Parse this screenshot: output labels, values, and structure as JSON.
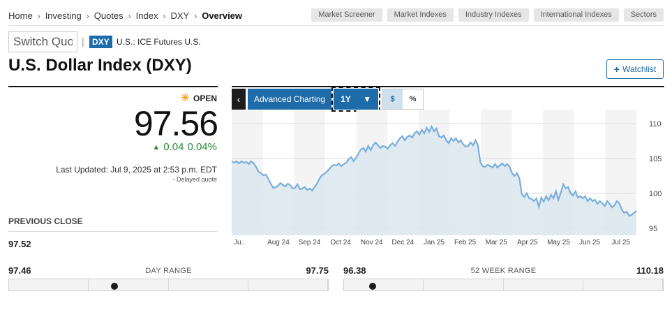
{
  "breadcrumb": [
    "Home",
    "Investing",
    "Quotes",
    "Index",
    "DXY",
    "Overview"
  ],
  "topnav": [
    "Market Screener",
    "Market Indexes",
    "Industry Indexes",
    "International Indexes",
    "Sectors"
  ],
  "quote_search": {
    "value": "Switch Quo"
  },
  "ticker": "DXY",
  "exchange": "U.S.: ICE Futures U.S.",
  "title": "U.S. Dollar Index (DXY)",
  "watchlist_label": "Watchlist",
  "market_status": "OPEN",
  "price": "97.56",
  "change": "0.04",
  "change_pct": "0.04%",
  "last_updated": "Last Updated: Jul 9, 2025 at 2:53 p.m. EDT",
  "delayed": "- Delayed quote",
  "previous_close": {
    "label": "PREVIOUS CLOSE",
    "value": "97.52"
  },
  "toolbar": {
    "back_icon": "‹",
    "advanced": "Advanced Charting",
    "range": "1Y",
    "dollar": "$",
    "percent": "%"
  },
  "day_range": {
    "label": "DAY RANGE",
    "low": "97.46",
    "high": "97.75",
    "position": 0.33
  },
  "week52_range": {
    "label": "52 WEEK RANGE",
    "low": "96.38",
    "high": "110.18",
    "position": 0.09
  },
  "colors": {
    "accent": "#1d6ba8",
    "up": "#2e8b3a",
    "line": "#7aaedc",
    "fill": "#dbe6ef"
  },
  "chart_data": {
    "type": "area",
    "x_ticks": [
      "Ju..",
      "Aug 24",
      "Sep 24",
      "Oct 24",
      "Nov 24",
      "Dec 24",
      "Jan 25",
      "Feb 25",
      "Mar 25",
      "Apr 25",
      "May 25",
      "Jun 25",
      "Jul 25"
    ],
    "y_ticks": [
      "110",
      "105",
      "100",
      "95"
    ],
    "ylim": [
      94,
      112
    ],
    "series": [
      {
        "values": [
          104.6,
          104.4,
          104.6,
          104.3,
          104.6,
          104.4,
          104.5,
          104.2,
          104.6,
          104.3,
          103.8,
          103.1,
          102.9,
          102.6,
          102.7,
          102.1,
          101.4,
          100.8,
          100.9,
          101.1,
          101.5,
          101.2,
          101.0,
          101.4,
          101.2,
          100.7,
          100.8,
          101.3,
          100.6,
          100.7,
          100.9,
          100.5,
          100.7,
          100.4,
          100.9,
          101.4,
          102.1,
          102.6,
          102.8,
          103.1,
          103.5,
          103.9,
          104.1,
          104.0,
          104.3,
          103.9,
          104.2,
          104.4,
          104.9,
          105.2,
          104.6,
          105.1,
          105.7,
          106.3,
          106.5,
          106.0,
          106.8,
          106.2,
          106.9,
          107.3,
          106.9,
          106.5,
          106.8,
          106.7,
          106.4,
          106.9,
          107.2,
          106.8,
          107.4,
          107.9,
          108.2,
          107.6,
          108.1,
          108.3,
          108.0,
          108.6,
          108.9,
          108.4,
          109.1,
          108.6,
          109.4,
          108.8,
          109.6,
          108.9,
          109.3,
          108.2,
          108.0,
          108.3,
          107.6,
          107.2,
          107.9,
          107.5,
          107.9,
          107.3,
          107.6,
          107.0,
          106.7,
          106.8,
          107.3,
          106.9,
          107.6,
          106.9,
          104.4,
          103.9,
          103.8,
          104.1,
          103.9,
          103.7,
          104.2,
          103.7,
          104.0,
          104.3,
          103.9,
          104.2,
          103.8,
          102.9,
          102.5,
          102.9,
          102.2,
          99.9,
          99.5,
          100.0,
          99.3,
          99.2,
          98.9,
          99.3,
          98.1,
          99.4,
          98.8,
          99.6,
          99.0,
          99.8,
          99.3,
          100.3,
          99.1,
          100.1,
          101.3,
          100.7,
          100.9,
          100.0,
          99.7,
          100.3,
          99.4,
          99.6,
          99.3,
          99.6,
          98.9,
          99.3,
          98.9,
          99.1,
          98.5,
          98.9,
          98.6,
          98.2,
          98.9,
          98.5,
          98.0,
          98.3,
          98.9,
          98.6,
          97.7,
          97.2,
          97.4,
          96.8,
          96.9,
          97.2,
          97.5
        ]
      }
    ]
  }
}
